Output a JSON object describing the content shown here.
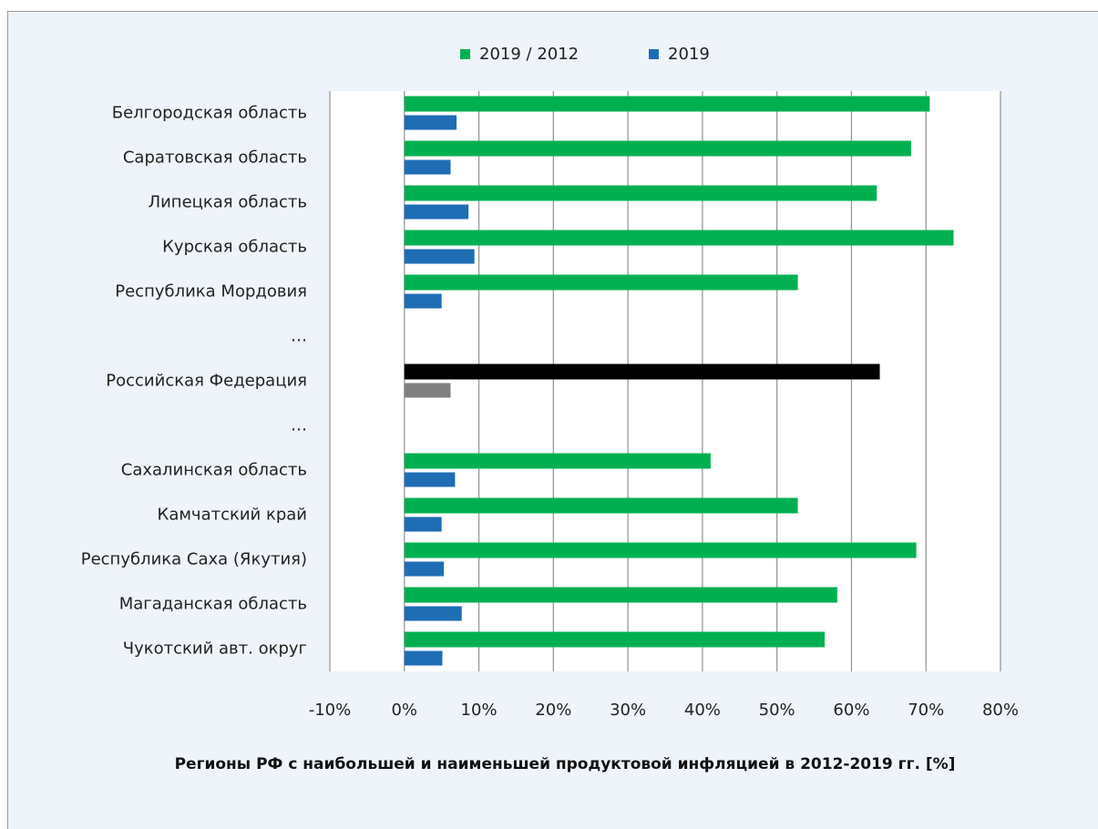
{
  "chart_data": {
    "type": "hbar",
    "title": "Регионы РФ с наибольшей и наименьшей продуктовой инфляцией в 2012-2019 гг. [%]",
    "categories": [
      "Белгородская область",
      "Саратовская область",
      "Липецкая область",
      "Курская область",
      "Республика Мордовия",
      "…",
      "Российская Федерация",
      "…",
      "Сахалинская область",
      "Камчатский край",
      "Республика Саха (Якутия)",
      "Магаданская область",
      "Чукотский авт. округ"
    ],
    "series": [
      {
        "name": "2019 / 2012",
        "color": "#00b050",
        "values": [
          70.5,
          68.0,
          63.4,
          73.7,
          52.8,
          null,
          63.8,
          null,
          41.1,
          52.8,
          68.7,
          58.1,
          56.4
        ],
        "colors": [
          "#00b050",
          "#00b050",
          "#00b050",
          "#00b050",
          "#00b050",
          null,
          "#000000",
          null,
          "#00b050",
          "#00b050",
          "#00b050",
          "#00b050",
          "#00b050"
        ]
      },
      {
        "name": "2019",
        "color": "#1f6db5",
        "values": [
          7.0,
          6.2,
          8.6,
          9.4,
          5.0,
          null,
          6.2,
          null,
          6.8,
          5.0,
          5.3,
          7.7,
          5.1
        ],
        "colors": [
          "#1f6db5",
          "#1f6db5",
          "#1f6db5",
          "#1f6db5",
          "#1f6db5",
          null,
          "#808080",
          null,
          "#1f6db5",
          "#1f6db5",
          "#1f6db5",
          "#1f6db5",
          "#1f6db5"
        ]
      }
    ],
    "xlim": [
      -10,
      80
    ],
    "xticks": [
      {
        "value": -10,
        "label": "-10%"
      },
      {
        "value": 0,
        "label": "0%"
      },
      {
        "value": 10,
        "label": "10%"
      },
      {
        "value": 20,
        "label": "20%"
      },
      {
        "value": 30,
        "label": "30%"
      },
      {
        "value": 40,
        "label": "40%"
      },
      {
        "value": 50,
        "label": "50%"
      },
      {
        "value": 60,
        "label": "60%"
      },
      {
        "value": 70,
        "label": "70%"
      },
      {
        "value": 80,
        "label": "80%"
      }
    ],
    "grid": true,
    "legend": "top"
  }
}
